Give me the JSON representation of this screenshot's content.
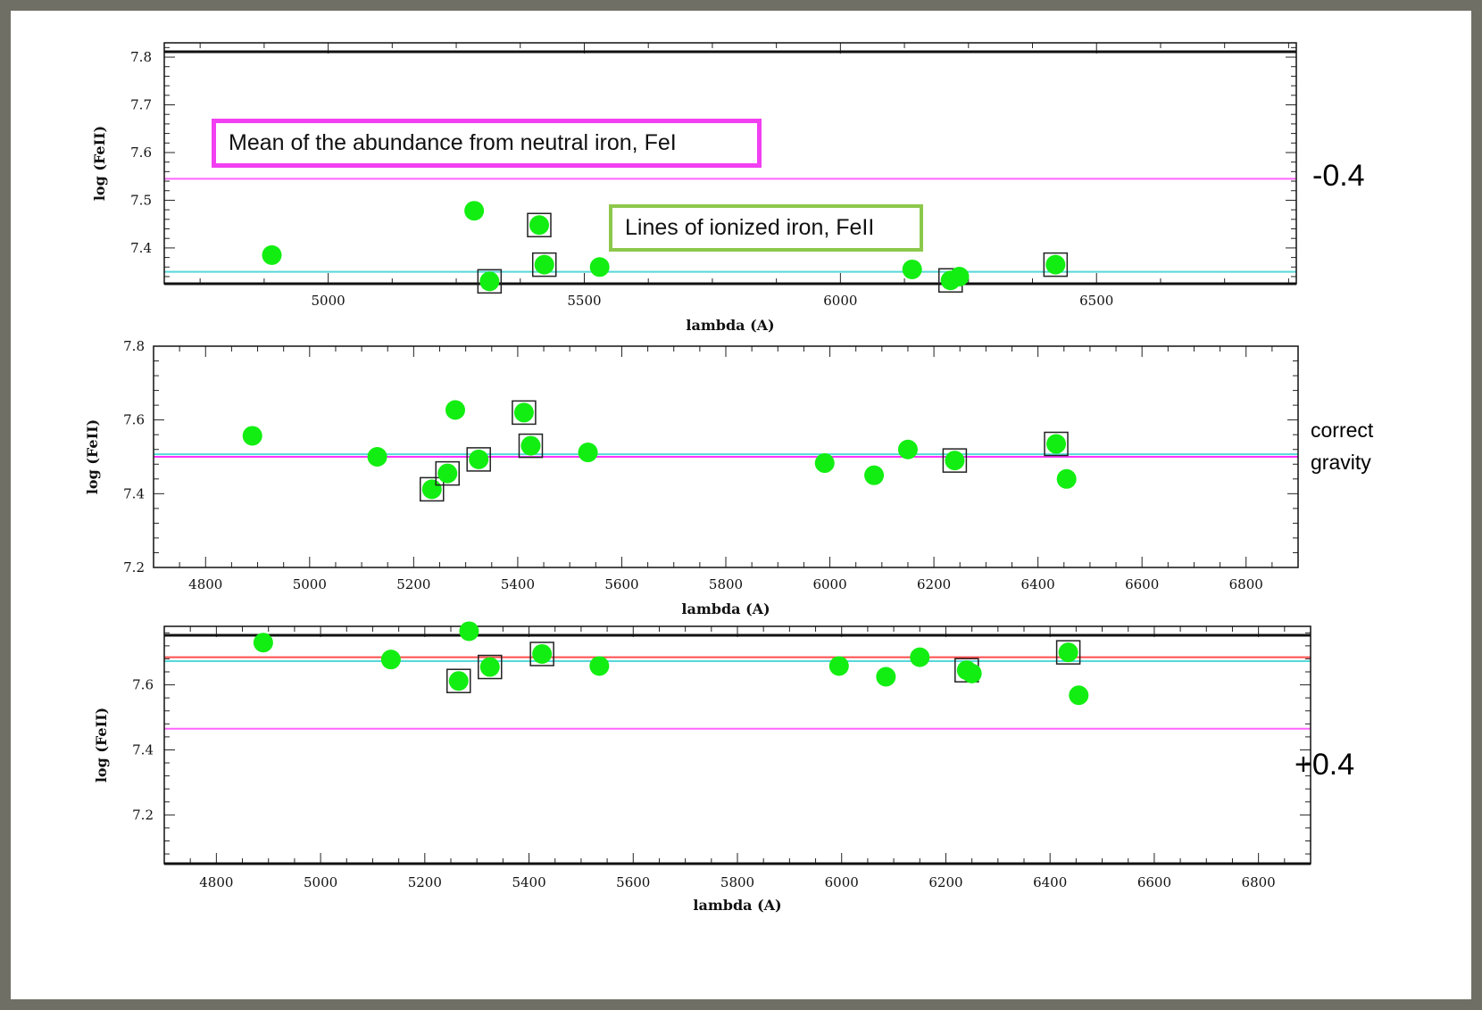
{
  "colors": {
    "point": "#12ee12",
    "fe1_mean": "#ff33ff",
    "fe2_mean": "#55d8d8",
    "red_line": "#ff4d4d",
    "callout_fe1_border": "#f23ff2",
    "callout_fe2_border": "#8cc84b"
  },
  "annotations": {
    "callout_fe1": "Mean of the abundance from neutral iron, FeI",
    "callout_fe2": "Lines of ionized iron, FeII",
    "label_top": "-0.4",
    "label_mid_line1": "correct",
    "label_mid_line2": "gravity",
    "label_bottom": "+0.4"
  },
  "chart_data": [
    {
      "type": "scatter",
      "panel": "top",
      "xlabel": "lambda (A)",
      "ylabel": "log (FeII)",
      "xlim": [
        4680,
        6890
      ],
      "ylim": [
        7.325,
        7.83
      ],
      "xticks": [
        5000,
        5500,
        6000,
        6500
      ],
      "yticks": [
        7.4,
        7.5,
        7.6,
        7.7,
        7.8
      ],
      "points": [
        {
          "x": 4890,
          "y": 7.385,
          "boxed": false
        },
        {
          "x": 5285,
          "y": 7.478,
          "boxed": false
        },
        {
          "x": 5315,
          "y": 7.33,
          "boxed": true
        },
        {
          "x": 5412,
          "y": 7.448,
          "boxed": true
        },
        {
          "x": 5422,
          "y": 7.365,
          "boxed": true
        },
        {
          "x": 5530,
          "y": 7.36,
          "boxed": false
        },
        {
          "x": 6140,
          "y": 7.355,
          "boxed": false
        },
        {
          "x": 6215,
          "y": 7.332,
          "boxed": true
        },
        {
          "x": 6232,
          "y": 7.34,
          "boxed": false
        },
        {
          "x": 6420,
          "y": 7.365,
          "boxed": true
        }
      ],
      "lines": [
        {
          "y": 7.545,
          "color": "#ff66ff"
        },
        {
          "y": 7.35,
          "color": "#55d8d8"
        }
      ]
    },
    {
      "type": "scatter",
      "panel": "middle",
      "xlabel": "lambda (A)",
      "ylabel": "log (FeII)",
      "xlim": [
        4700,
        6900
      ],
      "ylim": [
        7.2,
        7.8
      ],
      "xticks": [
        4800,
        5000,
        5200,
        5400,
        5600,
        5800,
        6000,
        6200,
        6400,
        6600,
        6800
      ],
      "yticks": [
        7.2,
        7.4,
        7.6,
        7.8
      ],
      "points": [
        {
          "x": 4890,
          "y": 7.557,
          "boxed": false
        },
        {
          "x": 5130,
          "y": 7.5,
          "boxed": false
        },
        {
          "x": 5235,
          "y": 7.412,
          "boxed": true
        },
        {
          "x": 5265,
          "y": 7.455,
          "boxed": true
        },
        {
          "x": 5280,
          "y": 7.627,
          "boxed": false
        },
        {
          "x": 5325,
          "y": 7.493,
          "boxed": true
        },
        {
          "x": 5412,
          "y": 7.62,
          "boxed": true
        },
        {
          "x": 5425,
          "y": 7.53,
          "boxed": true
        },
        {
          "x": 5535,
          "y": 7.512,
          "boxed": false
        },
        {
          "x": 5990,
          "y": 7.483,
          "boxed": false
        },
        {
          "x": 6085,
          "y": 7.45,
          "boxed": false
        },
        {
          "x": 6150,
          "y": 7.52,
          "boxed": false
        },
        {
          "x": 6240,
          "y": 7.49,
          "boxed": true
        },
        {
          "x": 6435,
          "y": 7.535,
          "boxed": true
        },
        {
          "x": 6455,
          "y": 7.44,
          "boxed": false
        }
      ],
      "lines": [
        {
          "y": 7.507,
          "color": "#55d8d8"
        },
        {
          "y": 7.5,
          "color": "#ff33ff"
        }
      ]
    },
    {
      "type": "scatter",
      "panel": "bottom",
      "xlabel": "lambda (A)",
      "ylabel": "log (FeII)",
      "xlim": [
        4700,
        6900
      ],
      "ylim": [
        7.05,
        7.78
      ],
      "xticks": [
        4800,
        5000,
        5200,
        5400,
        5600,
        5800,
        6000,
        6200,
        6400,
        6600,
        6800
      ],
      "yticks": [
        7.2,
        7.4,
        7.6
      ],
      "points": [
        {
          "x": 4890,
          "y": 7.73,
          "boxed": false
        },
        {
          "x": 5135,
          "y": 7.678,
          "boxed": false
        },
        {
          "x": 5265,
          "y": 7.612,
          "boxed": true
        },
        {
          "x": 5285,
          "y": 7.765,
          "boxed": false
        },
        {
          "x": 5325,
          "y": 7.655,
          "boxed": true
        },
        {
          "x": 5425,
          "y": 7.695,
          "boxed": true
        },
        {
          "x": 5535,
          "y": 7.658,
          "boxed": false
        },
        {
          "x": 5995,
          "y": 7.658,
          "boxed": false
        },
        {
          "x": 6085,
          "y": 7.625,
          "boxed": false
        },
        {
          "x": 6150,
          "y": 7.685,
          "boxed": false
        },
        {
          "x": 6240,
          "y": 7.645,
          "boxed": true
        },
        {
          "x": 6250,
          "y": 7.635,
          "boxed": false
        },
        {
          "x": 6435,
          "y": 7.7,
          "boxed": true
        },
        {
          "x": 6455,
          "y": 7.568,
          "boxed": false
        }
      ],
      "lines": [
        {
          "y": 7.685,
          "color": "#ff4d4d"
        },
        {
          "y": 7.673,
          "color": "#55d8d8"
        },
        {
          "y": 7.465,
          "color": "#ff66ff"
        }
      ]
    }
  ]
}
